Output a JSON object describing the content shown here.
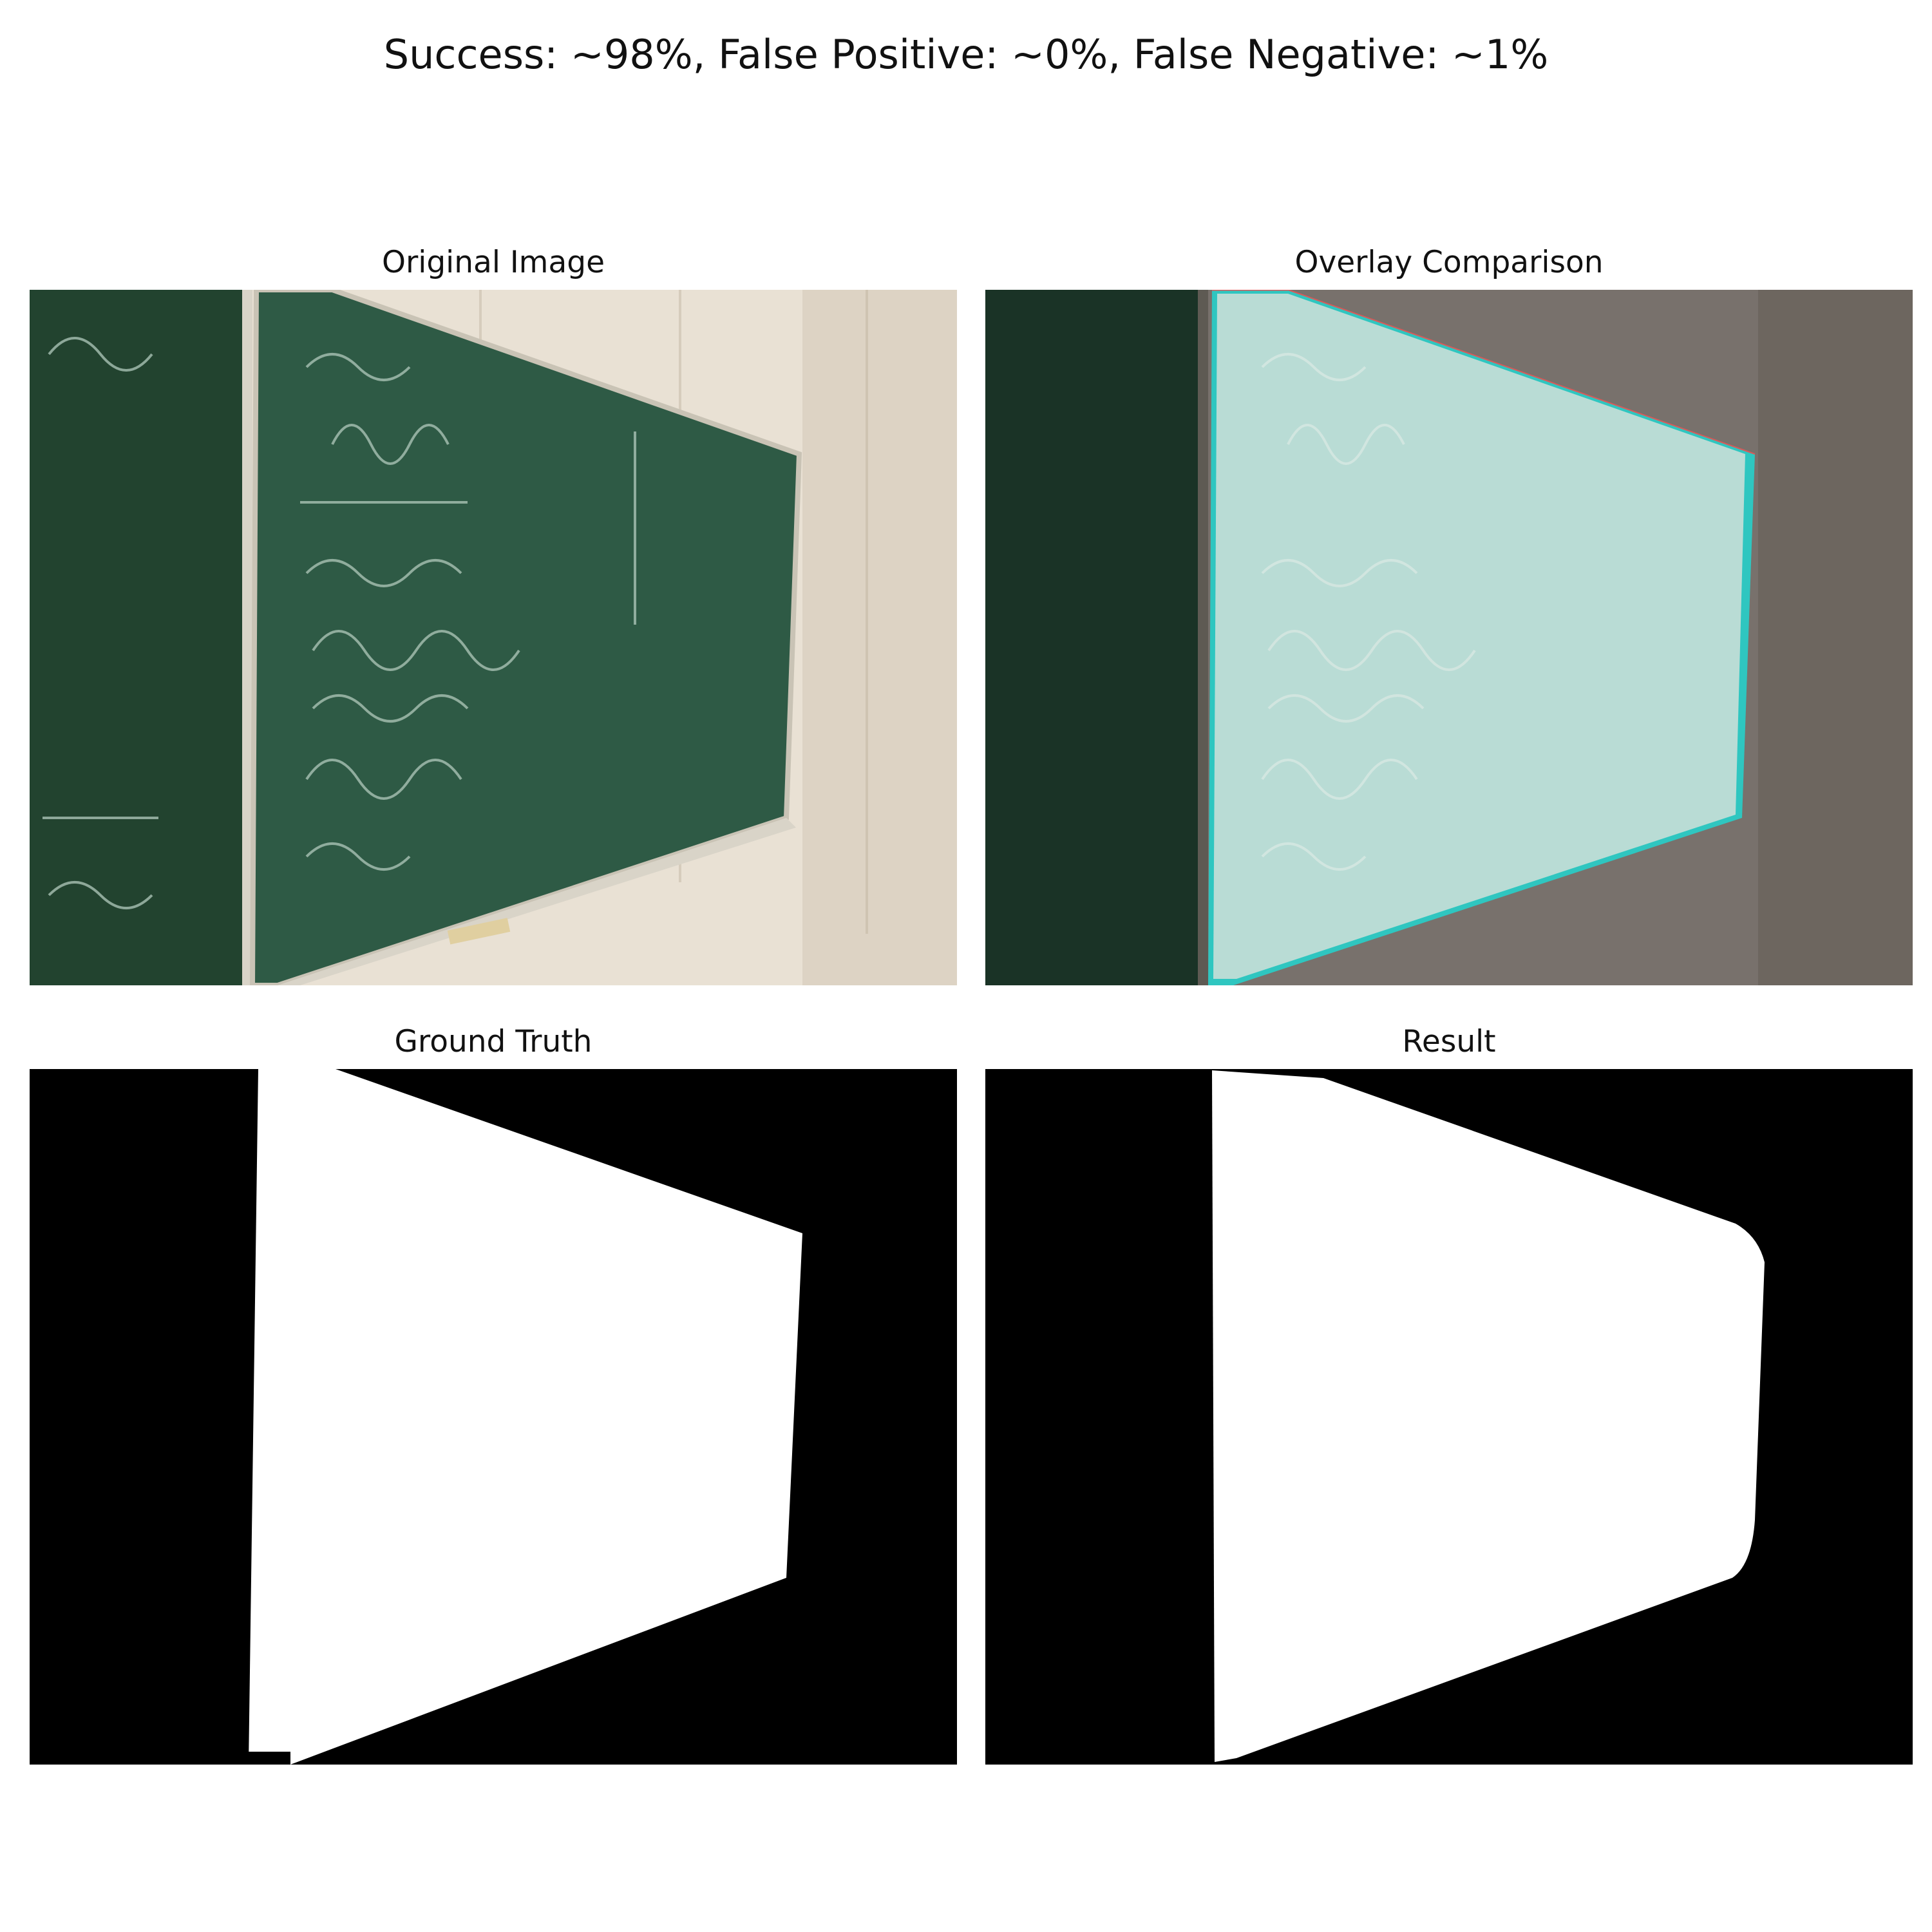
{
  "figure": {
    "title": "Success: ~98%, False Positive: ~0%, False Negative: ~1%"
  },
  "panels": [
    {
      "title": "Original Image"
    },
    {
      "title": "Overlay Comparison"
    },
    {
      "title": "Ground Truth"
    },
    {
      "title": "Result"
    }
  ],
  "colors": {
    "board_green": "#2e5a45",
    "wall": "#e9e1d4",
    "overlay_mask": "#b9dcd5",
    "overlay_edge": "#2fc6c0",
    "mask_white": "#ffffff",
    "mask_black": "#000000"
  }
}
